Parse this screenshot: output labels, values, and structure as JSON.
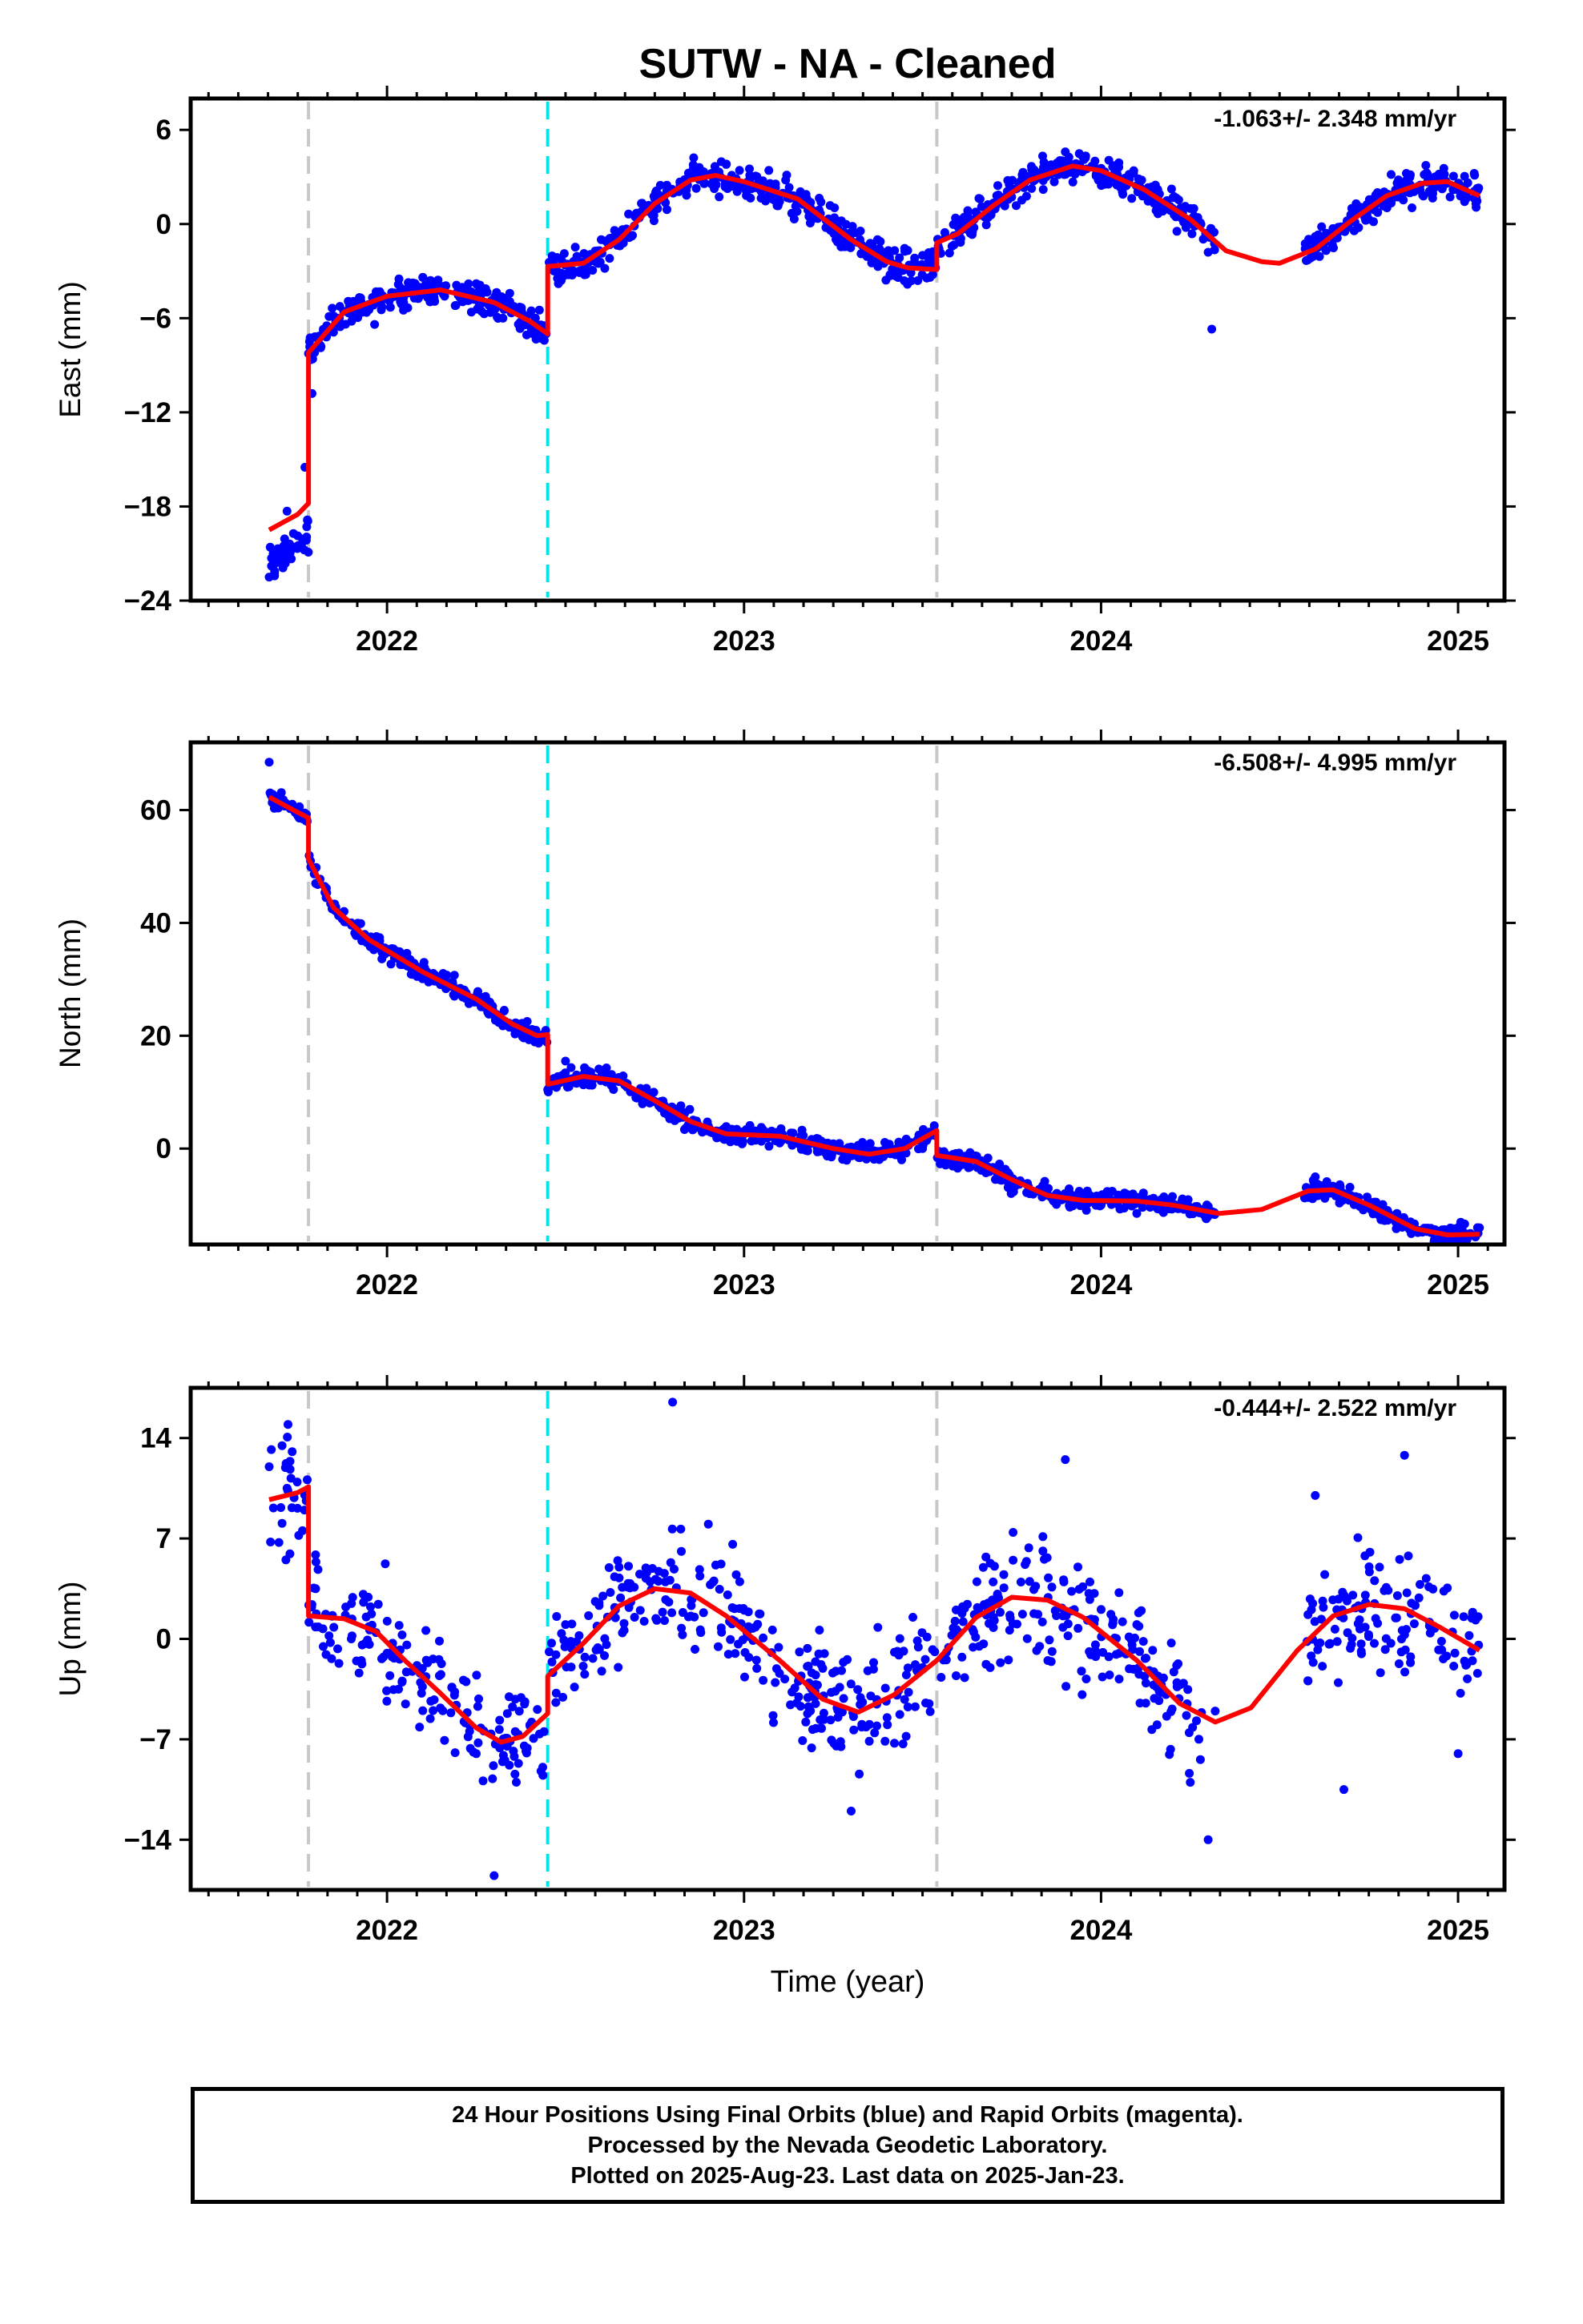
{
  "title": "SUTW  - NA - Cleaned",
  "x_axis_label": "Time (year)",
  "footer": {
    "line1": "24 Hour Positions Using Final Orbits (blue) and Rapid Orbits (magenta).",
    "line2": "Processed by the Nevada Geodetic Laboratory.",
    "line3": "Plotted on 2025-Aug-23. Last data on 2025-Jan-23."
  },
  "colors": {
    "data": "#0000ff",
    "model": "#ff0000",
    "offset_equipment": "#c8c8c8",
    "offset_earthquake": "#00e5e5"
  },
  "chart_data": [
    {
      "type": "scatter",
      "ylabel": "East (mm)",
      "rate": "-1.063+/- 2.348 mm/yr",
      "xlim": [
        2021.45,
        2025.13
      ],
      "ylim": [
        -24,
        8
      ],
      "yticks": [
        6,
        0,
        -6,
        -12,
        -18,
        -24
      ],
      "xticks": [
        2022,
        2023,
        2024,
        2025
      ],
      "offsets": [
        {
          "x": 2021.78,
          "kind": "equipment"
        },
        {
          "x": 2022.45,
          "kind": "earthquake"
        },
        {
          "x": 2023.54,
          "kind": "equipment"
        }
      ],
      "model": [
        [
          2021.67,
          -19.5
        ],
        [
          2021.75,
          -18.5
        ],
        [
          2021.78,
          -17.8
        ],
        [
          2021.78,
          -8.2
        ],
        [
          2021.88,
          -5.6
        ],
        [
          2022.0,
          -4.6
        ],
        [
          2022.15,
          -4.2
        ],
        [
          2022.3,
          -5.0
        ],
        [
          2022.4,
          -6.2
        ],
        [
          2022.45,
          -7.0
        ],
        [
          2022.45,
          -2.7
        ],
        [
          2022.55,
          -2.5
        ],
        [
          2022.65,
          -1.0
        ],
        [
          2022.75,
          1.3
        ],
        [
          2022.85,
          2.8
        ],
        [
          2022.92,
          3.1
        ],
        [
          2023.0,
          2.7
        ],
        [
          2023.15,
          1.6
        ],
        [
          2023.3,
          -1.0
        ],
        [
          2023.4,
          -2.4
        ],
        [
          2023.46,
          -2.8
        ],
        [
          2023.54,
          -2.9
        ],
        [
          2023.54,
          -1.2
        ],
        [
          2023.6,
          -0.6
        ],
        [
          2023.7,
          1.2
        ],
        [
          2023.8,
          2.8
        ],
        [
          2023.92,
          3.7
        ],
        [
          2024.0,
          3.4
        ],
        [
          2024.12,
          2.2
        ],
        [
          2024.25,
          0.3
        ],
        [
          2024.35,
          -1.7
        ],
        [
          2024.45,
          -2.4
        ],
        [
          2024.5,
          -2.5
        ],
        [
          2024.6,
          -1.6
        ],
        [
          2024.7,
          0.2
        ],
        [
          2024.8,
          1.8
        ],
        [
          2024.9,
          2.6
        ],
        [
          2024.97,
          2.7
        ],
        [
          2025.06,
          1.8
        ]
      ],
      "data_points": [
        [
          2021.67,
          -22.5
        ],
        [
          2021.72,
          -18.3
        ],
        [
          2021.77,
          -15.5
        ],
        [
          2021.79,
          -10.8
        ],
        [
          2021.85,
          -6.9
        ],
        [
          2021.95,
          -5.3
        ],
        [
          2022.1,
          -3.4
        ],
        [
          2022.25,
          -3.8
        ],
        [
          2022.4,
          -6.5
        ],
        [
          2022.48,
          -3.8
        ],
        [
          2022.6,
          -1.0
        ],
        [
          2022.75,
          1.6
        ],
        [
          2022.95,
          3.8
        ],
        [
          2023.15,
          1.6
        ],
        [
          2023.35,
          -1.6
        ],
        [
          2023.5,
          -2.0
        ],
        [
          2023.6,
          -0.2
        ],
        [
          2023.75,
          2.2
        ],
        [
          2023.9,
          4.6
        ],
        [
          2024.05,
          3.9
        ],
        [
          2024.2,
          1.0
        ],
        [
          2024.3,
          -1.8
        ],
        [
          2024.31,
          -6.7
        ],
        [
          2024.6,
          -0.8
        ],
        [
          2024.75,
          0.3
        ],
        [
          2024.92,
          2.1
        ],
        [
          2025.05,
          1.3
        ]
      ]
    },
    {
      "type": "scatter",
      "ylabel": "North (mm)",
      "rate": "-6.508+/- 4.995 mm/yr",
      "xlim": [
        2021.45,
        2025.13
      ],
      "ylim": [
        -17,
        72
      ],
      "yticks": [
        60,
        40,
        20,
        0
      ],
      "xticks": [
        2022,
        2023,
        2024,
        2025
      ],
      "offsets": [
        {
          "x": 2021.78,
          "kind": "equipment"
        },
        {
          "x": 2022.45,
          "kind": "earthquake"
        },
        {
          "x": 2023.54,
          "kind": "equipment"
        }
      ],
      "model": [
        [
          2021.67,
          62.3
        ],
        [
          2021.75,
          59.6
        ],
        [
          2021.78,
          58.6
        ],
        [
          2021.78,
          51.3
        ],
        [
          2021.85,
          42.7
        ],
        [
          2021.95,
          37.0
        ],
        [
          2022.1,
          31.3
        ],
        [
          2022.25,
          26.5
        ],
        [
          2022.35,
          22.1
        ],
        [
          2022.42,
          20.0
        ],
        [
          2022.45,
          20.2
        ],
        [
          2022.45,
          11.4
        ],
        [
          2022.55,
          12.8
        ],
        [
          2022.65,
          12.0
        ],
        [
          2022.75,
          8.5
        ],
        [
          2022.85,
          4.8
        ],
        [
          2022.95,
          2.6
        ],
        [
          2023.1,
          2.2
        ],
        [
          2023.25,
          0.0
        ],
        [
          2023.35,
          -1.0
        ],
        [
          2023.45,
          0.0
        ],
        [
          2023.54,
          3.2
        ],
        [
          2023.54,
          -1.2
        ],
        [
          2023.65,
          -2.3
        ],
        [
          2023.75,
          -5.5
        ],
        [
          2023.85,
          -8.3
        ],
        [
          2023.95,
          -9.2
        ],
        [
          2024.1,
          -9.3
        ],
        [
          2024.2,
          -10.0
        ],
        [
          2024.33,
          -11.5
        ],
        [
          2024.45,
          -10.8
        ],
        [
          2024.58,
          -7.5
        ],
        [
          2024.65,
          -7.3
        ],
        [
          2024.75,
          -10.0
        ],
        [
          2024.88,
          -14.2
        ],
        [
          2024.97,
          -15.3
        ],
        [
          2025.06,
          -15.2
        ]
      ],
      "data_points": [
        [
          2021.67,
          68.5
        ],
        [
          2021.75,
          59.0
        ],
        [
          2021.8,
          47.0
        ],
        [
          2021.9,
          40.0
        ],
        [
          2022.0,
          35.0
        ],
        [
          2022.15,
          30.0
        ],
        [
          2022.3,
          24.0
        ],
        [
          2022.42,
          19.0
        ],
        [
          2022.5,
          15.5
        ],
        [
          2022.7,
          10.0
        ],
        [
          2022.9,
          4.0
        ],
        [
          2023.1,
          1.0
        ],
        [
          2023.3,
          -1.0
        ],
        [
          2023.5,
          0.0
        ],
        [
          2023.6,
          -2.0
        ],
        [
          2023.8,
          -8.0
        ],
        [
          2024.0,
          -9.5
        ],
        [
          2024.2,
          -8.5
        ],
        [
          2024.6,
          -5.0
        ],
        [
          2024.8,
          -11.0
        ],
        [
          2025.0,
          -14.0
        ]
      ]
    },
    {
      "type": "scatter",
      "ylabel": "Up (mm)",
      "rate": "-0.444+/- 2.522 mm/yr",
      "xlim": [
        2021.45,
        2025.13
      ],
      "ylim": [
        -17.5,
        17.5
      ],
      "yticks": [
        14,
        7,
        0,
        -7,
        -14
      ],
      "xticks": [
        2022,
        2023,
        2024,
        2025
      ],
      "offsets": [
        {
          "x": 2021.78,
          "kind": "equipment"
        },
        {
          "x": 2022.45,
          "kind": "earthquake"
        },
        {
          "x": 2023.54,
          "kind": "equipment"
        }
      ],
      "model": [
        [
          2021.67,
          9.7
        ],
        [
          2021.75,
          10.2
        ],
        [
          2021.78,
          10.6
        ],
        [
          2021.78,
          1.6
        ],
        [
          2021.88,
          1.4
        ],
        [
          2021.97,
          0.5
        ],
        [
          2022.05,
          -1.5
        ],
        [
          2022.15,
          -3.8
        ],
        [
          2022.25,
          -6.2
        ],
        [
          2022.32,
          -7.2
        ],
        [
          2022.38,
          -6.8
        ],
        [
          2022.45,
          -5.2
        ],
        [
          2022.45,
          -2.6
        ],
        [
          2022.55,
          -0.3
        ],
        [
          2022.65,
          2.3
        ],
        [
          2022.75,
          3.5
        ],
        [
          2022.85,
          3.2
        ],
        [
          2022.95,
          1.6
        ],
        [
          2023.1,
          -1.5
        ],
        [
          2023.22,
          -4.2
        ],
        [
          2023.32,
          -5.1
        ],
        [
          2023.42,
          -3.9
        ],
        [
          2023.54,
          -1.5
        ],
        [
          2023.65,
          1.5
        ],
        [
          2023.75,
          2.9
        ],
        [
          2023.85,
          2.7
        ],
        [
          2023.95,
          1.5
        ],
        [
          2024.1,
          -1.5
        ],
        [
          2024.22,
          -4.5
        ],
        [
          2024.32,
          -5.8
        ],
        [
          2024.42,
          -4.8
        ],
        [
          2024.55,
          -0.8
        ],
        [
          2024.65,
          1.6
        ],
        [
          2024.75,
          2.4
        ],
        [
          2024.85,
          2.1
        ],
        [
          2024.95,
          0.8
        ],
        [
          2025.06,
          -0.8
        ]
      ],
      "data_points": [
        [
          2021.67,
          12.0
        ],
        [
          2021.72,
          10.5
        ],
        [
          2021.8,
          3.5
        ],
        [
          2021.9,
          0.0
        ],
        [
          2022.0,
          -1.0
        ],
        [
          2022.1,
          -5.0
        ],
        [
          2022.25,
          -8.0
        ],
        [
          2022.3,
          -16.5
        ],
        [
          2022.4,
          -6.0
        ],
        [
          2022.5,
          1.0
        ],
        [
          2022.65,
          5.0
        ],
        [
          2022.8,
          16.5
        ],
        [
          2022.9,
          8.0
        ],
        [
          2023.0,
          2.0
        ],
        [
          2023.2,
          -4.0
        ],
        [
          2023.3,
          -12.0
        ],
        [
          2023.5,
          -2.0
        ],
        [
          2023.6,
          0.5
        ],
        [
          2023.8,
          4.0
        ],
        [
          2023.9,
          12.5
        ],
        [
          2024.1,
          1.0
        ],
        [
          2024.25,
          -10.0
        ],
        [
          2024.3,
          -14.0
        ],
        [
          2024.6,
          10.0
        ],
        [
          2024.68,
          -10.5
        ],
        [
          2024.78,
          5.0
        ],
        [
          2024.85,
          12.8
        ],
        [
          2025.0,
          -8.0
        ]
      ]
    }
  ]
}
